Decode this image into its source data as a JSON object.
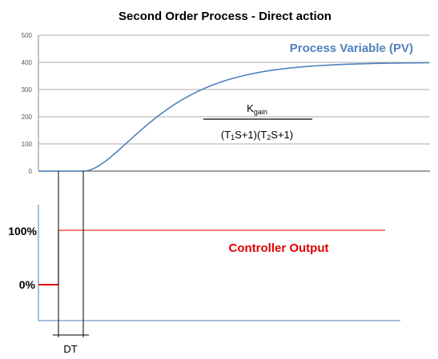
{
  "chart_data": {
    "type": "line",
    "title": "Second Order Process - Direct action",
    "pv_chart": {
      "yticks": [
        "0",
        "100",
        "200",
        "300",
        "400",
        "500"
      ],
      "ylim": [
        0,
        500
      ],
      "series": [
        {
          "name": "Process Variable (PV)",
          "color": "#4f81bd",
          "initial": 0,
          "final": 400
        }
      ],
      "transfer_function": {
        "numerator": "K",
        "numerator_sub": "gain",
        "denominator": [
          "(T",
          "1",
          "S+1)(T",
          "2",
          "S+1)"
        ]
      }
    },
    "co_chart": {
      "series": [
        {
          "name": "Controller Output",
          "color": "#e00000",
          "initial": 0,
          "final": 100,
          "initial_label": "0%",
          "final_label": "100%"
        }
      ]
    },
    "dead_time_label": "DT",
    "grid": true
  }
}
